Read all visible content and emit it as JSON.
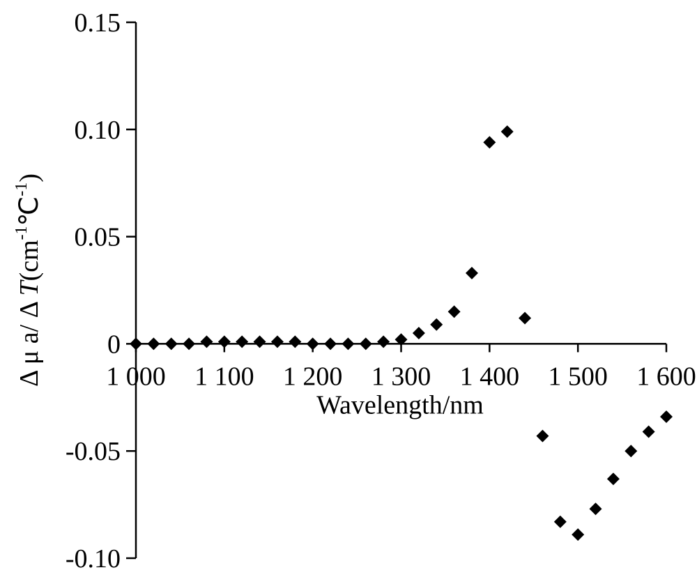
{
  "chart_data": {
    "type": "scatter",
    "xlabel": "Wavelength/nm",
    "ylabel": "Δ μ a/ Δ T(cm⁻¹℃⁻¹)",
    "ylabel_parts": {
      "prefix": "Δ μ a/ Δ ",
      "italic": "T",
      "unit_open": "(cm",
      "sup1": "-1",
      "mid": "℃",
      "sup2": "-1",
      "close": ")"
    },
    "xlim": [
      1000,
      1600
    ],
    "ylim": [
      -0.1,
      0.15
    ],
    "x_ticks": [
      {
        "value": 1000,
        "label": "1 000"
      },
      {
        "value": 1100,
        "label": "1 100"
      },
      {
        "value": 1200,
        "label": "1 200"
      },
      {
        "value": 1300,
        "label": "1 300"
      },
      {
        "value": 1400,
        "label": "1 400"
      },
      {
        "value": 1500,
        "label": "1 500"
      },
      {
        "value": 1600,
        "label": "1 600"
      }
    ],
    "y_ticks": [
      {
        "value": 0.15,
        "label": "0.15"
      },
      {
        "value": 0.1,
        "label": "0.10"
      },
      {
        "value": 0.05,
        "label": "0.05"
      },
      {
        "value": 0,
        "label": "0"
      },
      {
        "value": -0.05,
        "label": "-0.05"
      },
      {
        "value": -0.1,
        "label": "-0.10"
      }
    ],
    "grid": false,
    "marker": "diamond",
    "color": "#000000",
    "points": [
      {
        "x": 1000,
        "y": 0.0
      },
      {
        "x": 1020,
        "y": 0.0
      },
      {
        "x": 1040,
        "y": 0.0
      },
      {
        "x": 1060,
        "y": 0.0
      },
      {
        "x": 1080,
        "y": 0.001
      },
      {
        "x": 1100,
        "y": 0.001
      },
      {
        "x": 1120,
        "y": 0.001
      },
      {
        "x": 1140,
        "y": 0.001
      },
      {
        "x": 1160,
        "y": 0.001
      },
      {
        "x": 1180,
        "y": 0.001
      },
      {
        "x": 1200,
        "y": 0.0
      },
      {
        "x": 1220,
        "y": 0.0
      },
      {
        "x": 1240,
        "y": 0.0
      },
      {
        "x": 1260,
        "y": 0.0
      },
      {
        "x": 1280,
        "y": 0.001
      },
      {
        "x": 1300,
        "y": 0.002
      },
      {
        "x": 1320,
        "y": 0.005
      },
      {
        "x": 1340,
        "y": 0.009
      },
      {
        "x": 1360,
        "y": 0.015
      },
      {
        "x": 1380,
        "y": 0.033
      },
      {
        "x": 1400,
        "y": 0.094
      },
      {
        "x": 1420,
        "y": 0.099
      },
      {
        "x": 1440,
        "y": 0.012
      },
      {
        "x": 1460,
        "y": -0.043
      },
      {
        "x": 1480,
        "y": -0.083
      },
      {
        "x": 1500,
        "y": -0.089
      },
      {
        "x": 1520,
        "y": -0.077
      },
      {
        "x": 1540,
        "y": -0.063
      },
      {
        "x": 1560,
        "y": -0.05
      },
      {
        "x": 1580,
        "y": -0.041
      },
      {
        "x": 1600,
        "y": -0.034
      }
    ]
  }
}
